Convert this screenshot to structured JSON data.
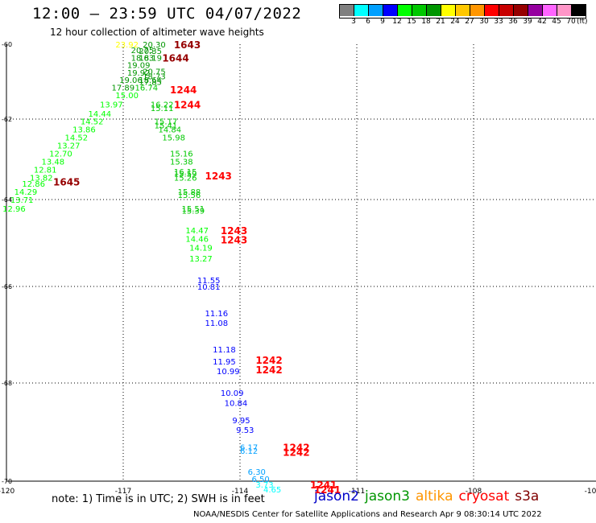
{
  "title": "12:00 — 23:59 UTC 04/07/2022",
  "subtitle": "12 hour collection of altimeter wave heights",
  "scale": {
    "colors": [
      "#808080",
      "#00ffff",
      "#00a0ff",
      "#0000ff",
      "#00ff00",
      "#00c800",
      "#009600",
      "#ffff00",
      "#ffc800",
      "#ff9600",
      "#ff0000",
      "#c80000",
      "#960000",
      "#9600a0",
      "#ff64ff",
      "#ff96c8",
      "#000000"
    ],
    "labels": [
      "3",
      "6",
      "9",
      "12",
      "15",
      "18",
      "21",
      "24",
      "27",
      "30",
      "33",
      "36",
      "39",
      "42",
      "45",
      "70"
    ],
    "unit": "(ft)"
  },
  "axes": {
    "lat_labels": [
      "-60",
      "-62",
      "-64",
      "-66",
      "-68",
      "-70"
    ],
    "lon_labels": [
      "-120",
      "-117",
      "-114",
      "-111",
      "-108",
      "-10"
    ]
  },
  "chart_data": {
    "type": "scatter",
    "x_axis": "longitude",
    "y_axis": "latitude",
    "lon_range": [
      -120,
      -105
    ],
    "lat_range": [
      -70.2,
      -60.2
    ],
    "grid": "dotted",
    "heights": [
      {
        "lon": -117.2,
        "lat": -60.0,
        "v": "23.92",
        "c": "#ffff00"
      },
      {
        "lon": -116.5,
        "lat": -60.0,
        "v": "20.30",
        "c": "#009600"
      },
      {
        "lon": -116.8,
        "lat": -60.15,
        "v": "20.75",
        "c": "#009600"
      },
      {
        "lon": -116.6,
        "lat": -60.17,
        "v": "20.35",
        "c": "#009600"
      },
      {
        "lon": -116.8,
        "lat": -60.35,
        "v": "18.63",
        "c": "#009600"
      },
      {
        "lon": -116.6,
        "lat": -60.35,
        "v": "18.19",
        "c": "#009600"
      },
      {
        "lon": -116.9,
        "lat": -60.55,
        "v": "19.09",
        "c": "#009600"
      },
      {
        "lon": -116.9,
        "lat": -60.75,
        "v": "19.92",
        "c": "#009600"
      },
      {
        "lon": -116.5,
        "lat": -60.72,
        "v": "20.75",
        "c": "#009600"
      },
      {
        "lon": -116.5,
        "lat": -60.85,
        "v": "18.73",
        "c": "#009600"
      },
      {
        "lon": -117.1,
        "lat": -60.95,
        "v": "19.06",
        "c": "#009600"
      },
      {
        "lon": -116.6,
        "lat": -60.95,
        "v": "18.64",
        "c": "#009600"
      },
      {
        "lon": -116.6,
        "lat": -61.0,
        "v": "17.85",
        "c": "#009600"
      },
      {
        "lon": -117.3,
        "lat": -61.15,
        "v": "17.89",
        "c": "#009600"
      },
      {
        "lon": -116.7,
        "lat": -61.15,
        "v": "16.74",
        "c": "#00c800"
      },
      {
        "lon": -117.2,
        "lat": -61.35,
        "v": "15.00",
        "c": "#00ff00"
      },
      {
        "lon": -117.6,
        "lat": -61.6,
        "v": "13.97",
        "c": "#00ff00"
      },
      {
        "lon": -116.3,
        "lat": -61.6,
        "v": "16.22",
        "c": "#00c800"
      },
      {
        "lon": -116.3,
        "lat": -61.7,
        "v": "15.11",
        "c": "#00c800"
      },
      {
        "lon": -117.9,
        "lat": -61.85,
        "v": "14.44",
        "c": "#00ff00"
      },
      {
        "lon": -118.1,
        "lat": -62.05,
        "v": "14.52",
        "c": "#00ff00"
      },
      {
        "lon": -116.2,
        "lat": -62.05,
        "v": "15.17",
        "c": "#00c800"
      },
      {
        "lon": -116.2,
        "lat": -62.15,
        "v": "15.41",
        "c": "#00c800"
      },
      {
        "lon": -118.3,
        "lat": -62.25,
        "v": "13.86",
        "c": "#00ff00"
      },
      {
        "lon": -116.1,
        "lat": -62.25,
        "v": "14.84",
        "c": "#00c800"
      },
      {
        "lon": -118.5,
        "lat": -62.45,
        "v": "14.52",
        "c": "#00ff00"
      },
      {
        "lon": -116.0,
        "lat": -62.45,
        "v": "15.98",
        "c": "#00c800"
      },
      {
        "lon": -118.7,
        "lat": -62.65,
        "v": "13.27",
        "c": "#00ff00"
      },
      {
        "lon": -118.9,
        "lat": -62.85,
        "v": "12.70",
        "c": "#00ff00"
      },
      {
        "lon": -115.8,
        "lat": -62.85,
        "v": "15.16",
        "c": "#00c800"
      },
      {
        "lon": -119.1,
        "lat": -63.05,
        "v": "13.48",
        "c": "#00ff00"
      },
      {
        "lon": -115.8,
        "lat": -63.05,
        "v": "15.38",
        "c": "#00c800"
      },
      {
        "lon": -119.3,
        "lat": -63.25,
        "v": "12.81",
        "c": "#00ff00"
      },
      {
        "lon": -115.7,
        "lat": -63.3,
        "v": "16.15",
        "c": "#00c800"
      },
      {
        "lon": -115.7,
        "lat": -63.35,
        "v": "15.59",
        "c": "#00c800"
      },
      {
        "lon": -119.4,
        "lat": -63.45,
        "v": "13.82",
        "c": "#00ff00"
      },
      {
        "lon": -115.7,
        "lat": -63.45,
        "v": "15.26",
        "c": "#00c800"
      },
      {
        "lon": -119.6,
        "lat": -63.6,
        "v": "12.86",
        "c": "#00ff00"
      },
      {
        "lon": -115.6,
        "lat": -63.8,
        "v": "15.88",
        "c": "#00c800"
      },
      {
        "lon": -119.8,
        "lat": -63.8,
        "v": "14.29",
        "c": "#00ff00"
      },
      {
        "lon": -115.6,
        "lat": -63.88,
        "v": "15.56",
        "c": "#00c800"
      },
      {
        "lon": -119.9,
        "lat": -64.0,
        "v": "13.71",
        "c": "#00ff00"
      },
      {
        "lon": -115.5,
        "lat": -64.2,
        "v": "15.51",
        "c": "#00c800"
      },
      {
        "lon": -115.5,
        "lat": -64.25,
        "v": "15.39",
        "c": "#00c800"
      },
      {
        "lon": -120.1,
        "lat": -64.2,
        "v": "12.96",
        "c": "#00ff00"
      },
      {
        "lon": -115.4,
        "lat": -64.7,
        "v": "14.47",
        "c": "#00ff00"
      },
      {
        "lon": -115.4,
        "lat": -64.9,
        "v": "14.46",
        "c": "#00ff00"
      },
      {
        "lon": -115.3,
        "lat": -65.1,
        "v": "14.19",
        "c": "#00ff00"
      },
      {
        "lon": -115.3,
        "lat": -65.35,
        "v": "13.27",
        "c": "#00ff00"
      },
      {
        "lon": -115.1,
        "lat": -65.85,
        "v": "11.55",
        "c": "#0000ff"
      },
      {
        "lon": -115.1,
        "lat": -66.0,
        "v": "10.81",
        "c": "#0000ff"
      },
      {
        "lon": -114.9,
        "lat": -66.55,
        "v": "11.16",
        "c": "#0000ff"
      },
      {
        "lon": -114.9,
        "lat": -66.75,
        "v": "11.08",
        "c": "#0000ff"
      },
      {
        "lon": -114.7,
        "lat": -67.3,
        "v": "11.18",
        "c": "#0000ff"
      },
      {
        "lon": -114.7,
        "lat": -67.55,
        "v": "11.95",
        "c": "#0000ff"
      },
      {
        "lon": -114.6,
        "lat": -67.75,
        "v": "10.99",
        "c": "#0000ff"
      },
      {
        "lon": -114.5,
        "lat": -68.2,
        "v": "10.09",
        "c": "#0000ff"
      },
      {
        "lon": -114.4,
        "lat": -68.4,
        "v": "10.84",
        "c": "#0000ff"
      },
      {
        "lon": -114.2,
        "lat": -68.75,
        "v": "9.95",
        "c": "#0000ff"
      },
      {
        "lon": -114.1,
        "lat": -68.95,
        "v": "9.53",
        "c": "#0000ff"
      },
      {
        "lon": -114.0,
        "lat": -69.3,
        "v": "6.17",
        "c": "#00a0ff"
      },
      {
        "lon": -114.0,
        "lat": -69.38,
        "v": "6.12",
        "c": "#00a0ff"
      },
      {
        "lon": -113.8,
        "lat": -69.8,
        "v": "6.30",
        "c": "#00a0ff"
      },
      {
        "lon": -113.7,
        "lat": -69.95,
        "v": "6.50",
        "c": "#00a0ff"
      },
      {
        "lon": -113.6,
        "lat": -70.2,
        "v": "3.73",
        "c": "#00ffff"
      },
      {
        "lon": -113.4,
        "lat": -70.5,
        "v": "4.65",
        "c": "#00ffff"
      }
    ],
    "times": [
      {
        "lon": -115.7,
        "lat": -60.0,
        "v": "1643",
        "c": "#960000"
      },
      {
        "lon": -116.0,
        "lat": -60.35,
        "v": "1644",
        "c": "#960000"
      },
      {
        "lon": -115.8,
        "lat": -61.2,
        "v": "1244",
        "c": "#ff0000"
      },
      {
        "lon": -115.7,
        "lat": -61.6,
        "v": "1244",
        "c": "#ff0000"
      },
      {
        "lon": -118.8,
        "lat": -63.55,
        "v": "1645",
        "c": "#960000"
      },
      {
        "lon": -114.9,
        "lat": -63.4,
        "v": "1243",
        "c": "#ff0000"
      },
      {
        "lon": -114.5,
        "lat": -64.7,
        "v": "1243",
        "c": "#ff0000"
      },
      {
        "lon": -114.5,
        "lat": -64.92,
        "v": "1243",
        "c": "#ff0000"
      },
      {
        "lon": -113.6,
        "lat": -67.52,
        "v": "1242",
        "c": "#ff0000"
      },
      {
        "lon": -113.6,
        "lat": -67.72,
        "v": "1242",
        "c": "#ff0000"
      },
      {
        "lon": -112.9,
        "lat": -69.3,
        "v": "1242",
        "c": "#ff0000"
      },
      {
        "lon": -112.9,
        "lat": -69.4,
        "v": "1242",
        "c": "#ff0000"
      },
      {
        "lon": -112.2,
        "lat": -70.2,
        "v": "1241",
        "c": "#ff0000"
      },
      {
        "lon": -112.1,
        "lat": -70.5,
        "v": "1241",
        "c": "#ff0000"
      }
    ]
  },
  "note": "note: 1) Time is in UTC; 2) SWH is in feet",
  "legend": [
    {
      "name": "jason2",
      "color": "#0000c8"
    },
    {
      "name": "jason3",
      "color": "#009600"
    },
    {
      "name": "altika",
      "color": "#ff9600"
    },
    {
      "name": "cryosat",
      "color": "#ff0000"
    },
    {
      "name": "s3a",
      "color": "#800000"
    }
  ],
  "credit": "NOAA/NESDIS Center for Satellite Applications and Research   Apr  9 08:30:14 UTC 2022"
}
